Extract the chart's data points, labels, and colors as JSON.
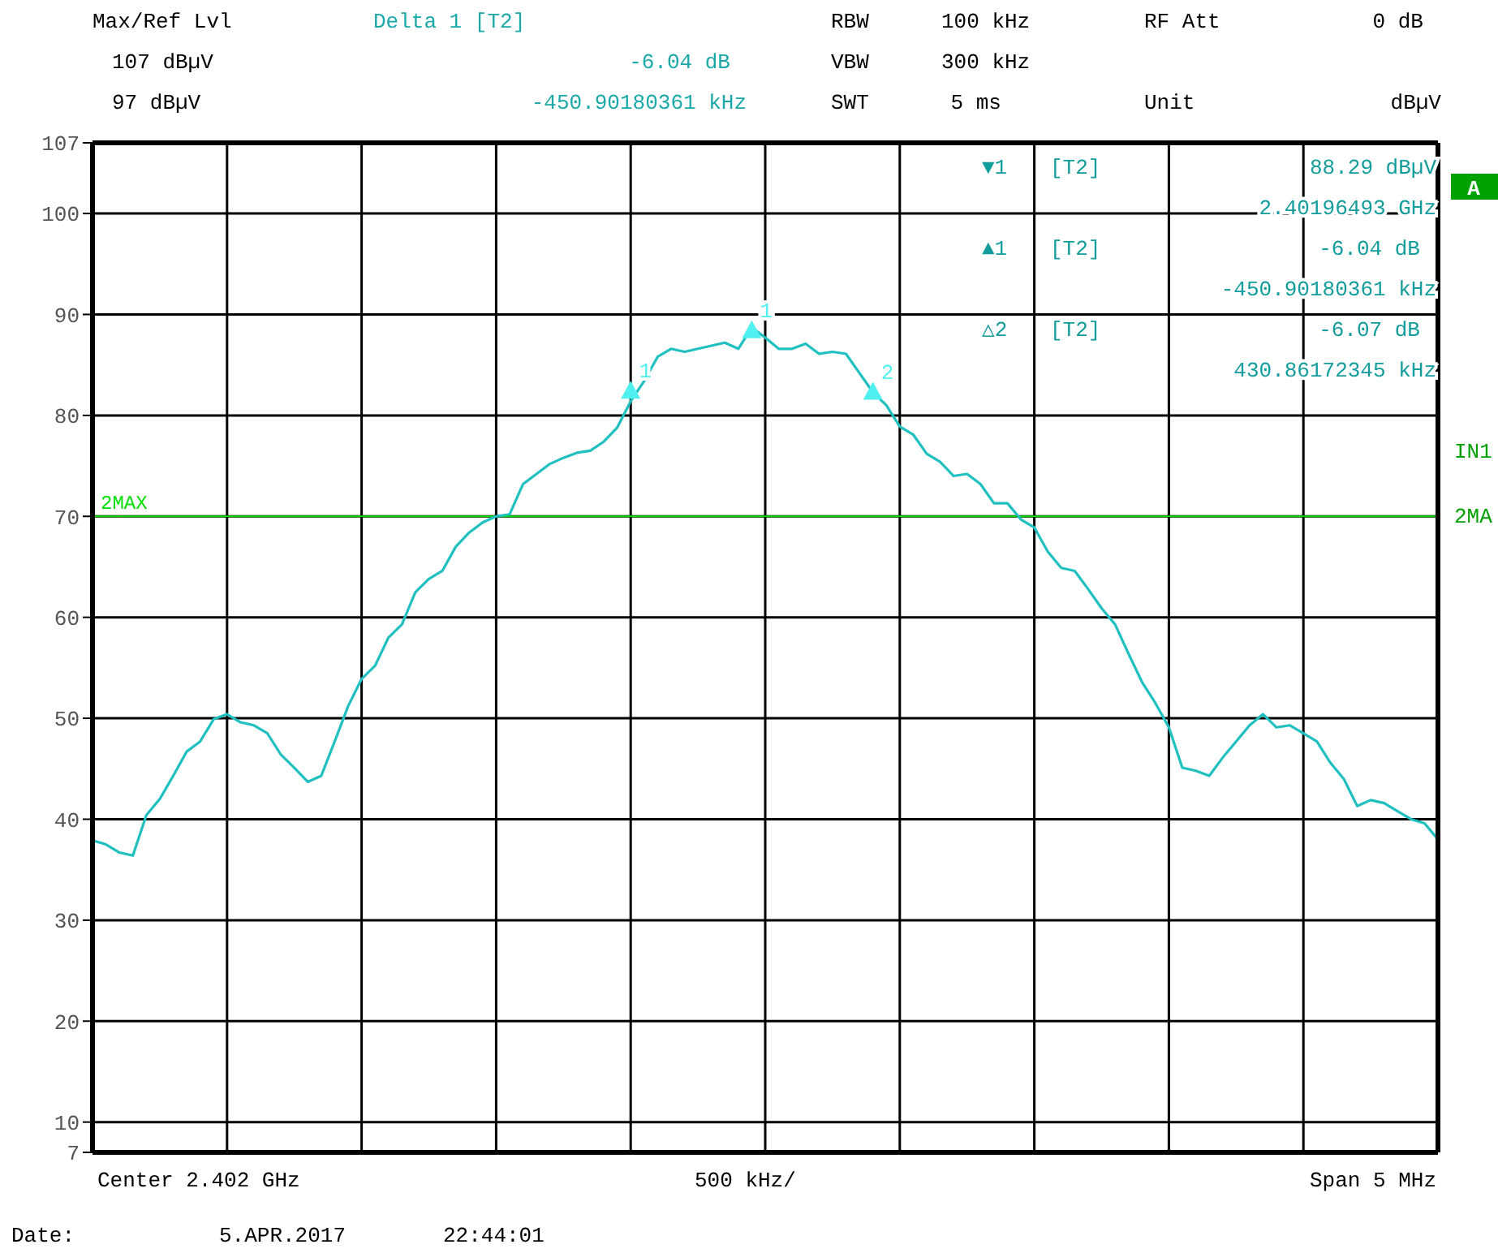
{
  "chart_data": {
    "type": "line",
    "categories": [
      null,
      null,
      null,
      null,
      null,
      null,
      null,
      null,
      null,
      null,
      null,
      null,
      null,
      null,
      null,
      null,
      null,
      null,
      null,
      null,
      null,
      null,
      null,
      null,
      null,
      null,
      null,
      null,
      null,
      null,
      null,
      null,
      null,
      null,
      null,
      null,
      null,
      null,
      null,
      null,
      null,
      null,
      null,
      null,
      null,
      null,
      null,
      null,
      null,
      null,
      null,
      null,
      null,
      null,
      null,
      null,
      null,
      null,
      null,
      null,
      null,
      null,
      null,
      null,
      null,
      null,
      null,
      null,
      null,
      null,
      null,
      null,
      null,
      null,
      null,
      null,
      null,
      null,
      null,
      null,
      null,
      null,
      null,
      null,
      null,
      null,
      null,
      null,
      null,
      null,
      null,
      null,
      null,
      null,
      null,
      null,
      null,
      null,
      null,
      null,
      null
    ],
    "series": [
      {
        "color": "#20c0c0",
        "values": [
          37.9,
          37.5,
          36.7,
          36.4,
          40.4,
          42.0,
          44.3,
          46.7,
          47.7,
          49.9,
          50.4,
          49.6,
          49.3,
          48.5,
          46.4,
          45.1,
          43.7,
          44.3,
          47.7,
          51.2,
          53.9,
          55.2,
          58.0,
          59.3,
          62.5,
          63.8,
          64.6,
          67.0,
          68.4,
          69.4,
          70.0,
          70.2,
          73.2,
          74.2,
          75.2,
          75.8,
          76.3,
          76.5,
          77.4,
          78.8,
          81.4,
          83.4,
          85.8,
          86.6,
          86.3,
          86.6,
          86.9,
          87.2,
          86.6,
          88.7,
          87.7,
          86.6,
          86.6,
          87.1,
          86.1,
          86.3,
          86.1,
          84.2,
          82.3,
          81.0,
          78.9,
          78.1,
          76.2,
          75.4,
          74.0,
          74.2,
          73.2,
          71.3,
          71.3,
          69.7,
          68.9,
          66.5,
          64.9,
          64.6,
          62.8,
          60.9,
          59.3,
          56.4,
          53.6,
          51.5,
          49.1,
          45.1,
          44.8,
          44.3,
          46.1,
          47.7,
          49.3,
          50.4,
          49.1,
          49.3,
          48.5,
          47.7,
          45.6,
          44.0,
          41.3,
          41.9,
          41.6,
          40.8,
          40.0,
          39.6,
          38.0
        ]
      },
      {
        "type": "scatter",
        "name": "1",
        "marker": "triangle",
        "color": "#50f0f0",
        "values": [
          null,
          null,
          null,
          null,
          null,
          null,
          null,
          null,
          null,
          null,
          null,
          null,
          null,
          null,
          null,
          null,
          null,
          null,
          null,
          null,
          null,
          null,
          null,
          null,
          null,
          null,
          null,
          null,
          null,
          null,
          null,
          null,
          null,
          null,
          null,
          null,
          null,
          null,
          null,
          null,
          null,
          null,
          null,
          null,
          null,
          null,
          null,
          null,
          null,
          88.3,
          null,
          null,
          null,
          null,
          null,
          null,
          null,
          null,
          null,
          null,
          null,
          null,
          null,
          null,
          null,
          null,
          null,
          null,
          null,
          null,
          null,
          null,
          null,
          null,
          null,
          null,
          null,
          null,
          null,
          null,
          null,
          null,
          null,
          null,
          null,
          null,
          null,
          null,
          null,
          null,
          null,
          null,
          null,
          null,
          null,
          null,
          null,
          null,
          null,
          null,
          null
        ]
      },
      {
        "type": "scatter",
        "name": "1",
        "marker": "triangle",
        "color": "#50f0f0",
        "values": [
          null,
          null,
          null,
          null,
          null,
          null,
          null,
          null,
          null,
          null,
          null,
          null,
          null,
          null,
          null,
          null,
          null,
          null,
          null,
          null,
          null,
          null,
          null,
          null,
          null,
          null,
          null,
          null,
          null,
          null,
          null,
          null,
          null,
          null,
          null,
          null,
          null,
          null,
          null,
          null,
          82.3,
          null,
          null,
          null,
          null,
          null,
          null,
          null,
          null,
          null,
          null,
          null,
          null,
          null,
          null,
          null,
          null,
          null,
          null,
          null,
          null,
          null,
          null,
          null,
          null,
          null,
          null,
          null,
          null,
          null,
          null,
          null,
          null,
          null,
          null,
          null,
          null,
          null,
          null,
          null,
          null,
          null,
          null,
          null,
          null,
          null,
          null,
          null,
          null,
          null,
          null,
          null,
          null,
          null,
          null,
          null,
          null,
          null,
          null,
          null,
          null
        ]
      },
      {
        "type": "scatter",
        "name": "2",
        "marker": "triangle",
        "color": "#50f0f0",
        "values": [
          null,
          null,
          null,
          null,
          null,
          null,
          null,
          null,
          null,
          null,
          null,
          null,
          null,
          null,
          null,
          null,
          null,
          null,
          null,
          null,
          null,
          null,
          null,
          null,
          null,
          null,
          null,
          null,
          null,
          null,
          null,
          null,
          null,
          null,
          null,
          null,
          null,
          null,
          null,
          null,
          null,
          null,
          null,
          null,
          null,
          null,
          null,
          null,
          null,
          null,
          null,
          null,
          null,
          null,
          null,
          null,
          null,
          null,
          82.2,
          null,
          null,
          null,
          null,
          null,
          null,
          null,
          null,
          null,
          null,
          null,
          null,
          null,
          null,
          null,
          null,
          null,
          null,
          null,
          null,
          null,
          null,
          null,
          null,
          null,
          null,
          null,
          null,
          null,
          null,
          null,
          null,
          null,
          null,
          null,
          null,
          null,
          null,
          null,
          null,
          null,
          null
        ]
      }
    ],
    "ylim": [
      7,
      107
    ],
    "yticks": [
      7,
      10,
      20,
      30,
      40,
      50,
      60,
      70,
      80,
      90,
      100,
      107
    ],
    "grid": true,
    "legend": false,
    "ref_lines": [
      {
        "axis": "y",
        "value": 70,
        "label": "2MAX",
        "color": "#00e000"
      }
    ],
    "annotations": [
      "Max/Ref Lvl",
      "Delta 1 [T2]",
      "RBW",
      "100 kHz",
      "RF Att",
      "0 dB",
      "107 dBµV",
      "-6.04 dB",
      "VBW",
      "300 kHz",
      "97 dBµV",
      "-450.90180361 kHz",
      "SWT",
      "5 ms",
      "Unit",
      "dBµV",
      "▼1",
      "[T2]",
      "88.29 dBµV",
      "2.40196493 GHz",
      "▲1",
      "[T2]",
      "-6.04 dB",
      "-450.90180361 kHz",
      "△2",
      "[T2]",
      "-6.07 dB",
      "430.86172345 kHz",
      "A",
      "IN1",
      "2MA",
      "Center 2.402 GHz",
      "500 kHz/",
      "Span 5 MHz",
      "Date:",
      "5.APR.2017",
      "22:44:01"
    ]
  }
}
